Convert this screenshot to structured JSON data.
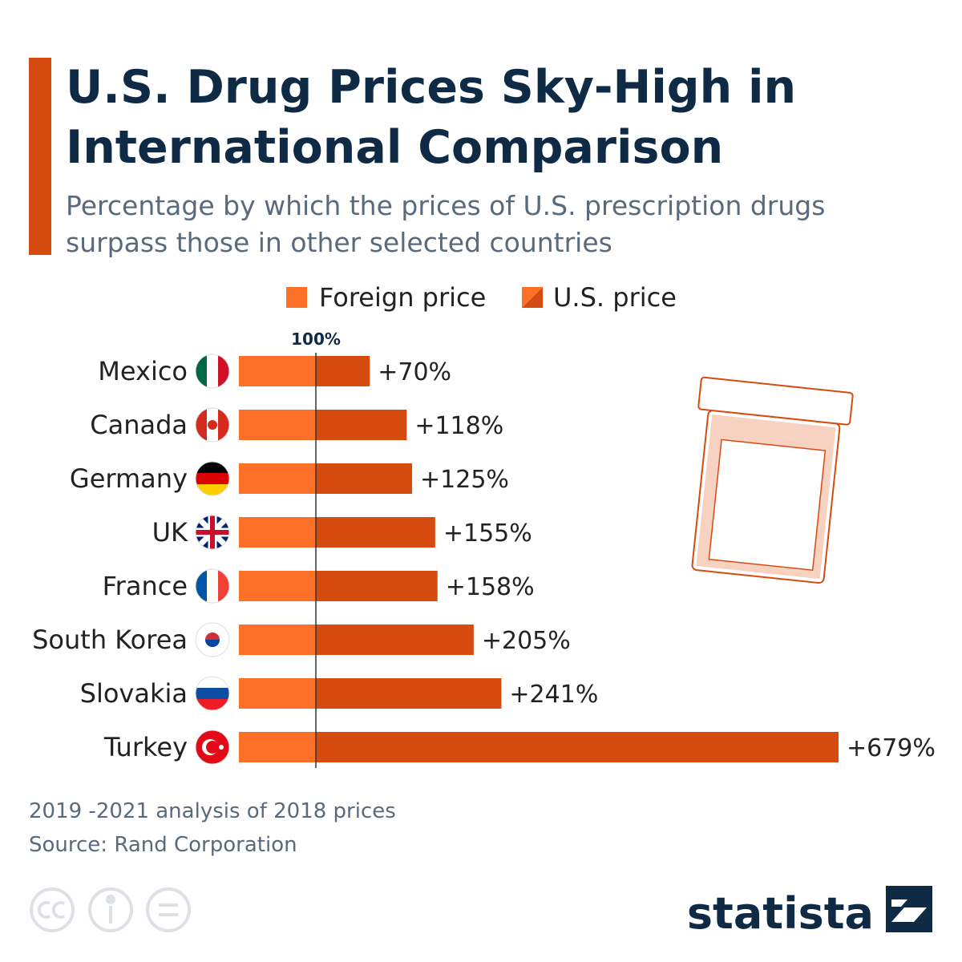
{
  "chart_data": {
    "type": "stacked-barh",
    "title": [
      "U.S. Drug Prices Sky-High in",
      "International Comparison"
    ],
    "subtitle": [
      "Percentage by which the prices of U.S. prescription drugs",
      "surpass those in other selected countries"
    ],
    "categories": [
      "Mexico",
      "Canada",
      "Germany",
      "UK",
      "France",
      "South Korea",
      "Slovakia",
      "Turkey"
    ],
    "series": [
      {
        "name": "Foreign price",
        "color": "#fd7028",
        "values": [
          100,
          100,
          100,
          100,
          100,
          100,
          100,
          100
        ]
      },
      {
        "name": "U.S. price",
        "color": "#d54b10",
        "values": [
          70,
          118,
          125,
          155,
          158,
          205,
          241,
          679
        ],
        "value_labels": [
          "+70%",
          "+118%",
          "+125%",
          "+155%",
          "+158%",
          "+205%",
          "+241%",
          "+679%"
        ]
      }
    ],
    "xlim": [
      0,
      779
    ],
    "xticks": [
      {
        "value": 100,
        "label": "100%"
      }
    ],
    "notes": [
      "2019 -2021 analysis of 2018 prices",
      "Source: Rand Corporation"
    ],
    "brand": "statista"
  }
}
